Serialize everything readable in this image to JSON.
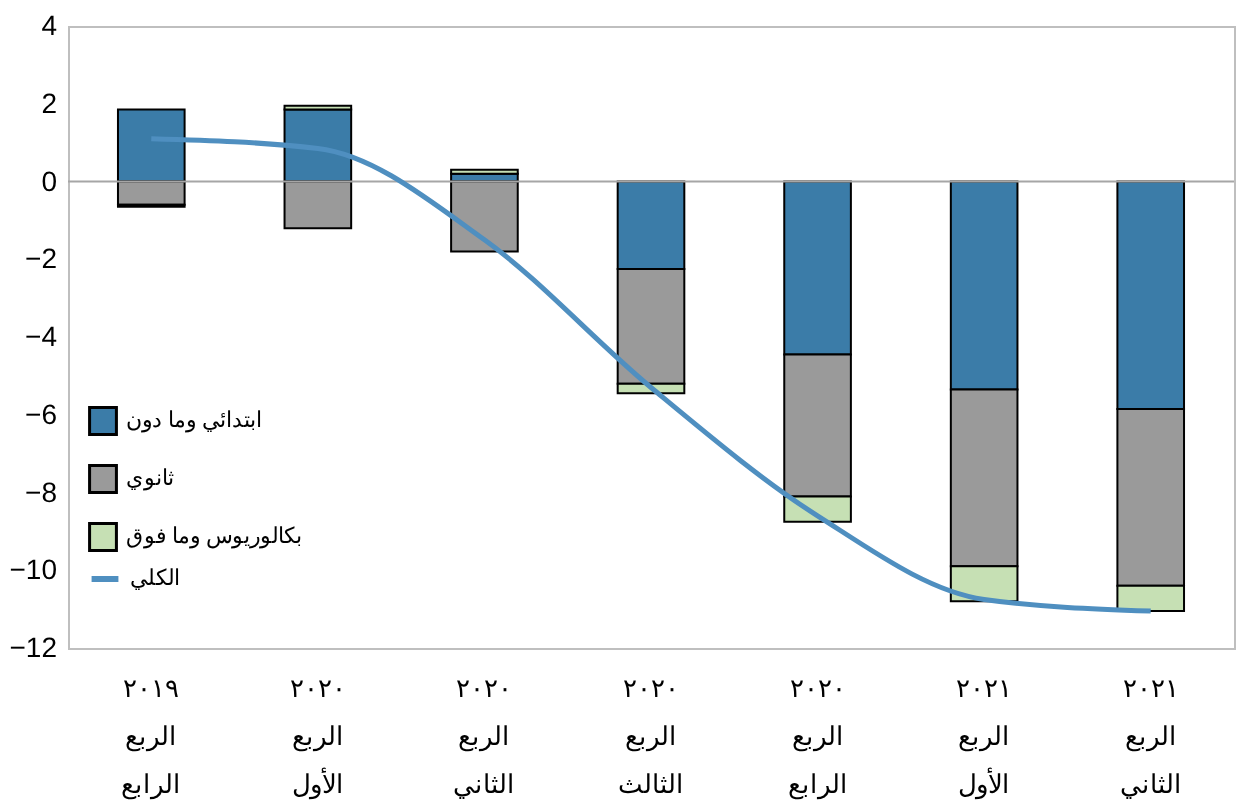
{
  "chart_data": {
    "type": "bar",
    "stacked": true,
    "categories": [
      "٢٠١٩\nالربع\nالرابع",
      "٢٠٢٠\nالربع\nالأول",
      "٢٠٢٠\nالربع\nالثاني",
      "٢٠٢٠\nالربع\nالثالث",
      "٢٠٢٠\nالربع\nالرابع",
      "٢٠٢١\nالربع\nالأول",
      "٢٠٢١\nالربع\nالثاني"
    ],
    "series": [
      {
        "name": "ابتدائي وما دون",
        "color": "#3b7ca8",
        "values": [
          1.85,
          1.85,
          0.2,
          -2.25,
          -4.45,
          -5.35,
          -5.85
        ]
      },
      {
        "name": "ثانوي",
        "color": "#9a9a9a",
        "values": [
          -0.6,
          -1.2,
          -1.8,
          -2.95,
          -3.65,
          -4.55,
          -4.55
        ]
      },
      {
        "name": "بكالوريوس وما فوق",
        "color": "#c6e0b4",
        "values": [
          -0.05,
          0.1,
          0.1,
          -0.25,
          -0.65,
          -0.9,
          -0.65
        ]
      },
      {
        "name": "الكلي",
        "color": "#4f8fc0",
        "type": "line",
        "values": [
          1.1,
          0.85,
          -1.5,
          -5.3,
          -8.6,
          -10.75,
          -11.05
        ]
      }
    ],
    "ylim": [
      -12,
      4
    ],
    "yticks": [
      -12,
      -10,
      -8,
      -6,
      -4,
      -2,
      0,
      2,
      4
    ],
    "ref_lines": [
      {
        "axis": "y",
        "value": 0,
        "color": "#a6a6a6"
      }
    ],
    "grid": false,
    "legend": "bottom left",
    "marker": "none",
    "line_style": "solid"
  }
}
